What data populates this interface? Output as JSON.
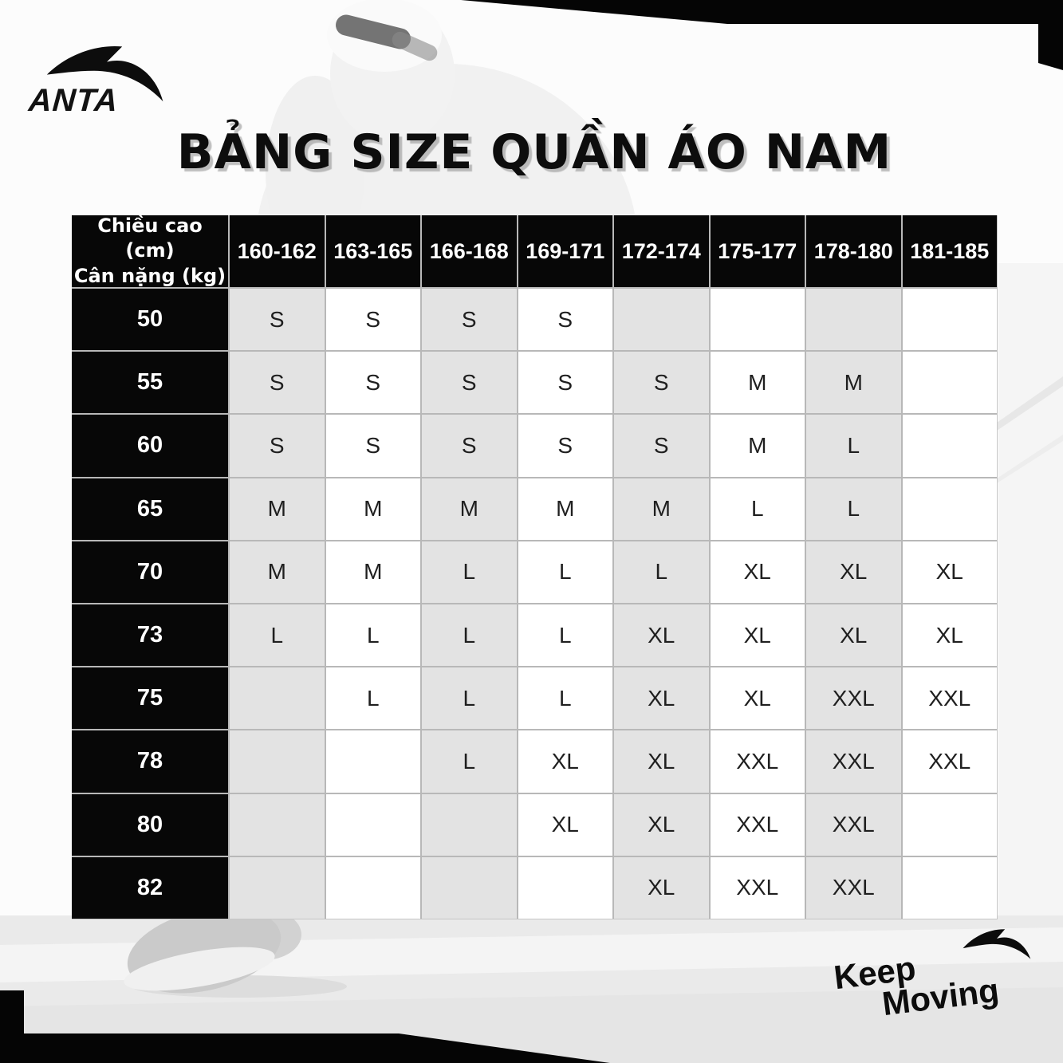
{
  "page": {
    "brand_wordmark": "ANTA",
    "title": "BẢNG SIZE QUẦN ÁO NAM",
    "slogan": {
      "line1": "Keep",
      "line2": "Moving"
    }
  },
  "colors": {
    "accent_black": "#070707",
    "cell_gray": "#e3e3e3",
    "cell_white": "#ffffff",
    "grid_line": "#b8b8b8",
    "header_text": "#ffffff",
    "body_text": "#1f1f1f",
    "title_shadow": "#8c8c8c",
    "ground_gray": "#eaeaea"
  },
  "chart_data": {
    "type": "table",
    "title": "BẢNG SIZE QUẦN ÁO NAM",
    "corner_header_lines": [
      "Chiều cao (cm)",
      "Cân nặng (kg)"
    ],
    "column_headers": [
      "160-162",
      "163-165",
      "166-168",
      "169-171",
      "172-174",
      "175-177",
      "178-180",
      "181-185"
    ],
    "row_headers": [
      "50",
      "55",
      "60",
      "65",
      "70",
      "73",
      "75",
      "78",
      "80",
      "82"
    ],
    "rows": [
      [
        "S",
        "S",
        "S",
        "S",
        "",
        "",
        "",
        ""
      ],
      [
        "S",
        "S",
        "S",
        "S",
        "S",
        "M",
        "M",
        ""
      ],
      [
        "S",
        "S",
        "S",
        "S",
        "S",
        "M",
        "L",
        ""
      ],
      [
        "M",
        "M",
        "M",
        "M",
        "M",
        "L",
        "L",
        ""
      ],
      [
        "M",
        "M",
        "L",
        "L",
        "L",
        "XL",
        "XL",
        "XL"
      ],
      [
        "L",
        "L",
        "L",
        "L",
        "XL",
        "XL",
        "XL",
        "XL"
      ],
      [
        "",
        "L",
        "L",
        "L",
        "XL",
        "XL",
        "XXL",
        "XXL"
      ],
      [
        "",
        "",
        "L",
        "XL",
        "XL",
        "XXL",
        "XXL",
        "XXL"
      ],
      [
        "",
        "",
        "",
        "XL",
        "XL",
        "XXL",
        "XXL",
        ""
      ],
      [
        "",
        "",
        "",
        "",
        "XL",
        "XXL",
        "XXL",
        ""
      ]
    ]
  }
}
